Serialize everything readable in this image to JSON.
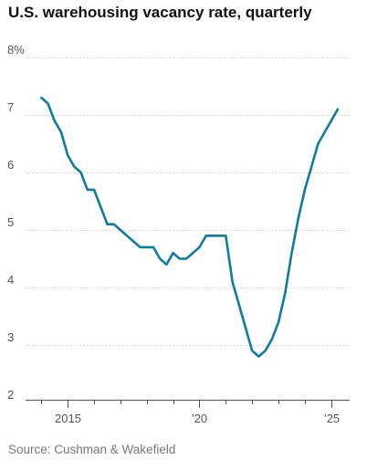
{
  "chart_data": {
    "type": "line",
    "title": "U.S. warehousing vacancy rate, quarterly",
    "xlabel": "",
    "ylabel": "",
    "ylim": [
      2,
      8
    ],
    "y_ticks": [
      2,
      3,
      4,
      5,
      6,
      7,
      8
    ],
    "y_tick_labels": [
      "2",
      "3",
      "4",
      "5",
      "6",
      "7",
      "8%"
    ],
    "x_tick_labels": [
      {
        "year": 2015,
        "label": "2015"
      },
      {
        "year": 2020,
        "label": "’20"
      },
      {
        "year": 2025,
        "label": "’25"
      }
    ],
    "x_range": [
      2013.4,
      2025.7
    ],
    "minor_tick_years": [
      2014,
      2015,
      2016,
      2017,
      2018,
      2019,
      2020,
      2021,
      2022,
      2023,
      2024,
      2025
    ],
    "grid": true,
    "line_color": "#0e7c9e",
    "x": [
      2014.0,
      2014.25,
      2014.5,
      2014.75,
      2015.0,
      2015.25,
      2015.5,
      2015.75,
      2016.0,
      2016.25,
      2016.5,
      2016.75,
      2017.0,
      2017.25,
      2017.5,
      2017.75,
      2018.0,
      2018.25,
      2018.5,
      2018.75,
      2019.0,
      2019.25,
      2019.5,
      2019.75,
      2020.0,
      2020.25,
      2020.5,
      2020.75,
      2021.0,
      2021.25,
      2021.5,
      2021.75,
      2022.0,
      2022.25,
      2022.5,
      2022.75,
      2023.0,
      2023.25,
      2023.5,
      2023.75,
      2024.0,
      2024.25,
      2024.5,
      2024.75,
      2025.0,
      2025.25
    ],
    "y": [
      7.3,
      7.2,
      6.9,
      6.7,
      6.3,
      6.1,
      6.0,
      5.7,
      5.7,
      5.4,
      5.1,
      5.1,
      5.0,
      4.9,
      4.8,
      4.7,
      4.7,
      4.7,
      4.5,
      4.4,
      4.6,
      4.5,
      4.5,
      4.6,
      4.7,
      4.9,
      4.9,
      4.9,
      4.9,
      4.1,
      3.7,
      3.3,
      2.9,
      2.8,
      2.9,
      3.1,
      3.4,
      3.9,
      4.6,
      5.2,
      5.7,
      6.1,
      6.5,
      6.7,
      6.9,
      7.1
    ]
  },
  "source": "Source: Cushman & Wakefield"
}
